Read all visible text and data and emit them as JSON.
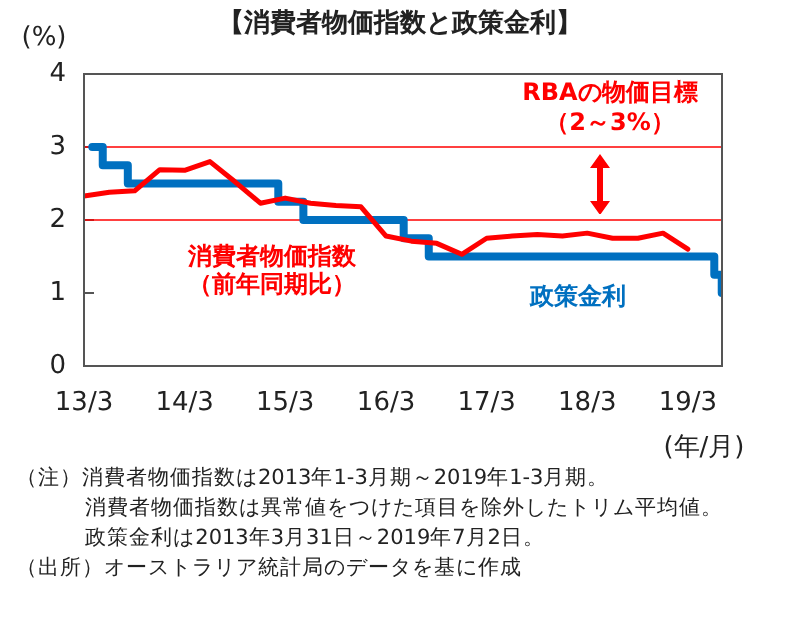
{
  "chart_data": {
    "type": "line",
    "title": "【消費者物価指数と政策金利】",
    "ylabel": "(%)",
    "xlabel": "(年/月)",
    "xlim": [
      "2013-03",
      "2019-07-03"
    ],
    "xticks": [
      {
        "value": "2013-03",
        "label": "13/3"
      },
      {
        "value": "2014-03",
        "label": "14/3"
      },
      {
        "value": "2015-03",
        "label": "15/3"
      },
      {
        "value": "2016-03",
        "label": "16/3"
      },
      {
        "value": "2017-03",
        "label": "17/3"
      },
      {
        "value": "2018-03",
        "label": "18/3"
      },
      {
        "value": "2019-03",
        "label": "19/3"
      }
    ],
    "ylim": [
      0,
      4
    ],
    "yticks": [
      0,
      1,
      2,
      3,
      4
    ],
    "grid": false,
    "legend": false,
    "marker": "none",
    "line_style": "solid",
    "series": [
      {
        "name": "消費者物価指数（前年同期比）",
        "color": "#ff0000",
        "x": [
          "2013-03",
          "2013-06",
          "2013-09",
          "2013-12",
          "2014-03",
          "2014-06",
          "2014-09",
          "2014-12",
          "2015-03",
          "2015-06",
          "2015-09",
          "2015-12",
          "2016-03",
          "2016-06",
          "2016-09",
          "2016-12",
          "2017-03",
          "2017-06",
          "2017-09",
          "2017-12",
          "2018-03",
          "2018-06",
          "2018-09",
          "2018-12",
          "2019-03"
        ],
        "values": [
          2.33,
          2.38,
          2.4,
          2.69,
          2.68,
          2.8,
          2.52,
          2.23,
          2.3,
          2.23,
          2.2,
          2.18,
          1.78,
          1.71,
          1.68,
          1.53,
          1.75,
          1.78,
          1.8,
          1.78,
          1.82,
          1.75,
          1.75,
          1.82,
          1.6
        ]
      },
      {
        "name": "政策金利",
        "type": "step",
        "color": "#0070c0",
        "x": [
          "2013-03-31",
          "2013-05-08",
          "2013-08-07",
          "2015-02-04",
          "2015-05-06",
          "2016-05-04",
          "2016-08-03",
          "2019-06-05",
          "2019-07-02"
        ],
        "values": [
          3,
          2.75,
          2.5,
          2.25,
          2,
          1.75,
          1.5,
          1.25,
          1
        ]
      }
    ],
    "ref_lines": [
      {
        "axis": "y",
        "value": 2,
        "color": "#ff0000"
      },
      {
        "axis": "y",
        "value": 3,
        "color": "#ff0000"
      }
    ],
    "annotations": [
      "RBAの物価目標（2～3%）",
      "（注）消費者物価指数は2013年1-3月期～2019年1-3月期。",
      "消費者物価指数は異常値をつけた項目を除外したトリム平均値。",
      "政策金利は2013年3月31日～2019年7月2日。",
      "（出所）オーストラリア統計局のデータを基に作成"
    ]
  }
}
